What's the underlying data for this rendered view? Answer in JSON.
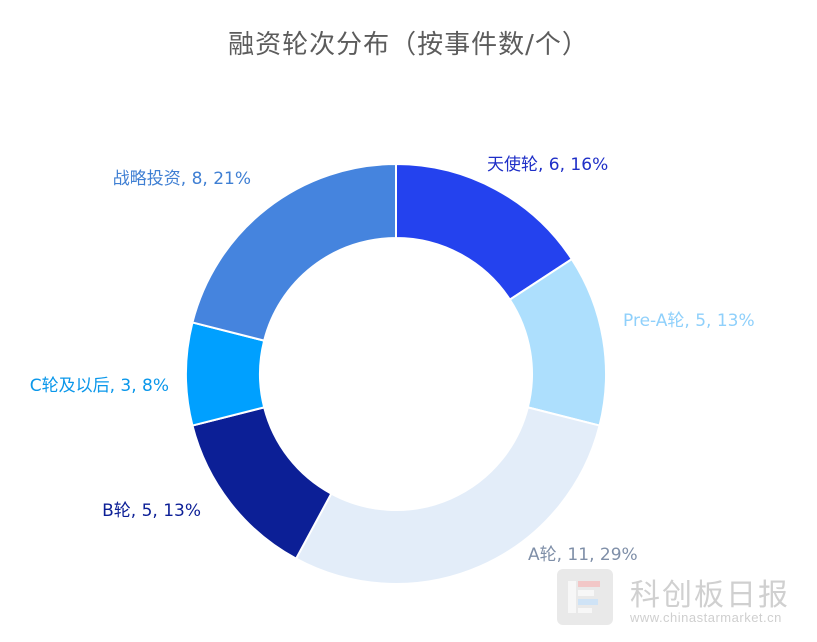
{
  "chart_data": {
    "type": "pie",
    "variant": "donut",
    "title": "融资轮次分布（按事件数/个）",
    "slices": [
      {
        "name": "天使轮",
        "value": 6,
        "percent": "16%",
        "label": "天使轮, 6, 16%",
        "color": "#2442ee",
        "label_color": "#1f2fc7"
      },
      {
        "name": "Pre-A轮",
        "value": 5,
        "percent": "13%",
        "label": "Pre-A轮, 5, 13%",
        "color": "#addffd",
        "label_color": "#8fd0fb"
      },
      {
        "name": "A轮",
        "value": 11,
        "percent": "29%",
        "label": "A轮, 11, 29%",
        "color": "#e3edf9",
        "label_color": "#7f8fa8"
      },
      {
        "name": "B轮",
        "value": 5,
        "percent": "13%",
        "label": "B轮, 5, 13%",
        "color": "#0c1f96",
        "label_color": "#0c1f96"
      },
      {
        "name": "C轮及以后",
        "value": 3,
        "percent": "8%",
        "label": "C轮及以后, 3, 8%",
        "color": "#00a0ff",
        "label_color": "#0a97ea"
      },
      {
        "name": "战略投资",
        "value": 8,
        "percent": "21%",
        "label": "战略投资, 8, 21%",
        "color": "#4584de",
        "label_color": "#3f7fd3"
      }
    ]
  },
  "watermark": {
    "brand": "科创板日报",
    "url": "www.chinastarmarket.cn"
  }
}
